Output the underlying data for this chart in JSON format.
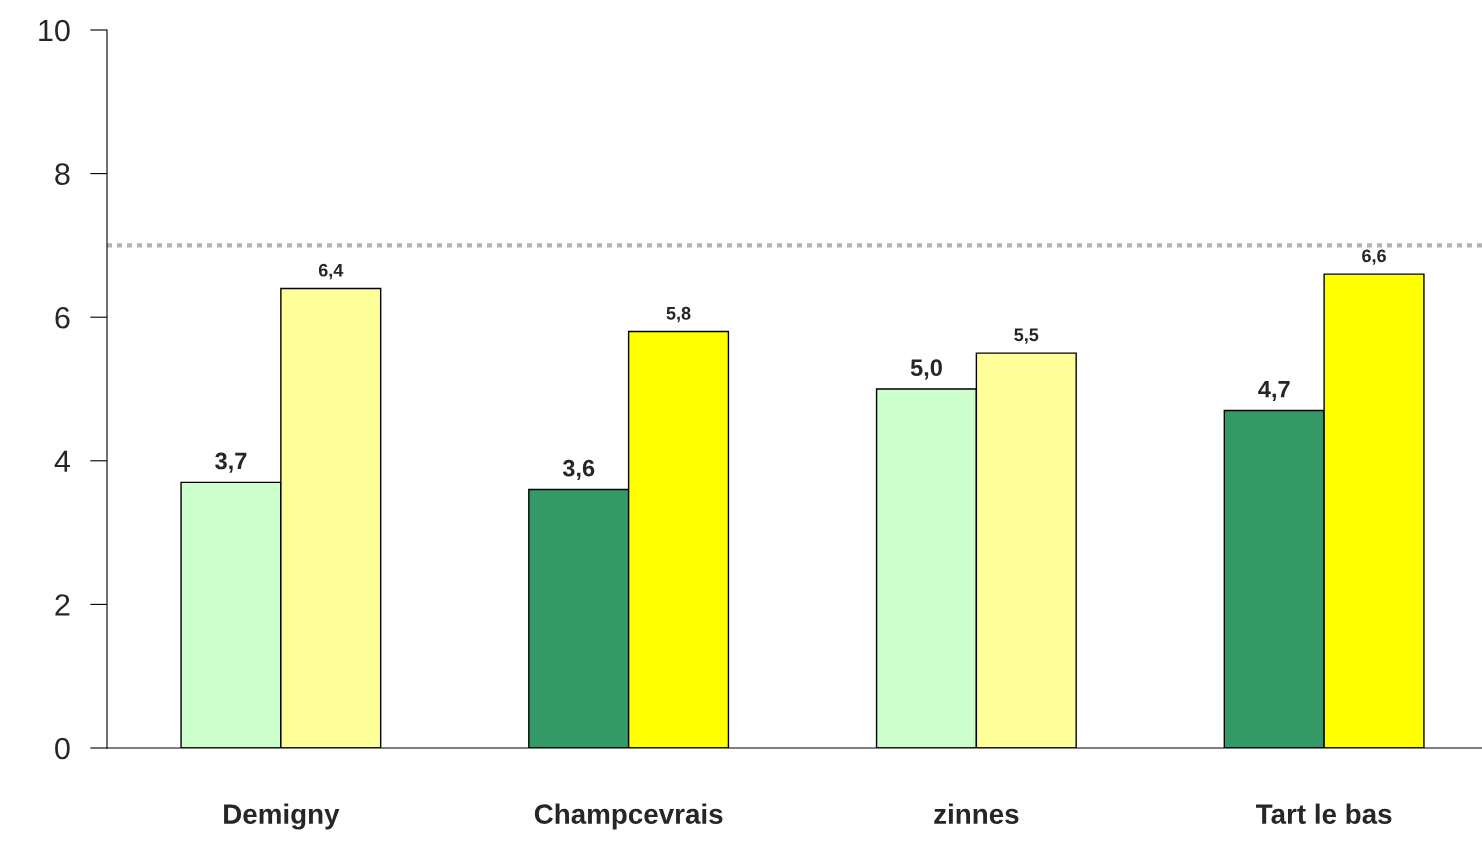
{
  "chart_data": {
    "type": "bar",
    "categories": [
      "Demigny",
      "Champcevrais",
      "zinnes",
      "Tart le bas"
    ],
    "series": [
      {
        "colors": [
          "#ccffcc",
          "#339966",
          "#ccffcc",
          "#339966"
        ],
        "values": [
          3.7,
          3.6,
          5.0,
          4.7
        ],
        "value_labels": [
          "3,7",
          "3,6",
          "5,0",
          "4,7"
        ]
      },
      {
        "colors": [
          "#ffff99",
          "#ffff00",
          "#ffff99",
          "#ffff00"
        ],
        "values": [
          6.4,
          5.8,
          5.5,
          6.6
        ],
        "value_labels": [
          "6,4",
          "5,8",
          "5,5",
          "6,6"
        ]
      }
    ],
    "ylim": [
      0,
      10
    ],
    "yticks": [
      0,
      2,
      4,
      6,
      8,
      10
    ],
    "grid": false,
    "legend": false,
    "ref_lines": [
      {
        "axis": "y",
        "value": 7,
        "color": "#b3b3b3",
        "line_style": "dotted"
      }
    ]
  }
}
